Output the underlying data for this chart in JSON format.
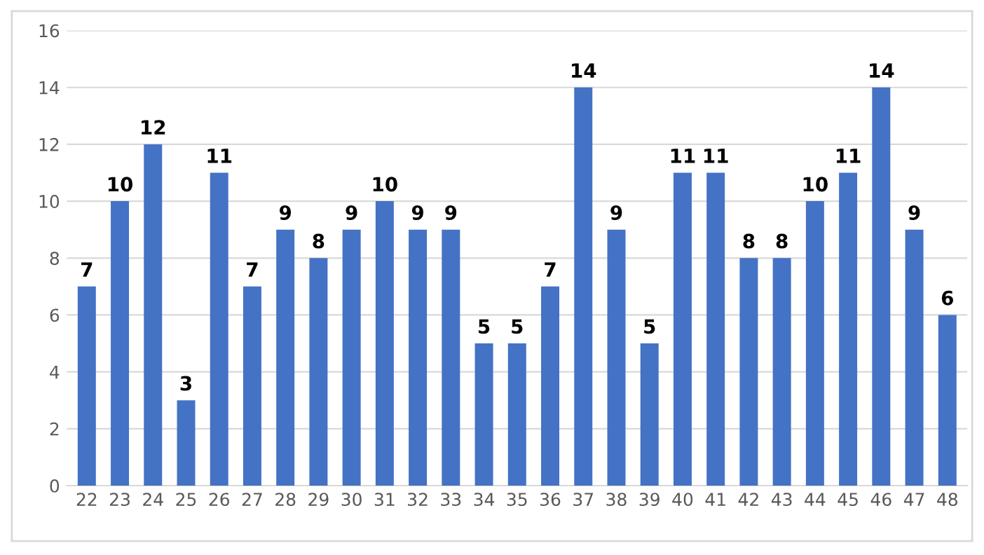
{
  "chart_data": {
    "type": "bar",
    "categories": [
      "22",
      "23",
      "24",
      "25",
      "26",
      "27",
      "28",
      "29",
      "30",
      "31",
      "32",
      "33",
      "34",
      "35",
      "36",
      "37",
      "38",
      "39",
      "40",
      "41",
      "42",
      "43",
      "44",
      "45",
      "46",
      "47",
      "48"
    ],
    "values": [
      7,
      10,
      12,
      3,
      11,
      7,
      9,
      8,
      9,
      10,
      9,
      9,
      5,
      5,
      7,
      14,
      9,
      5,
      11,
      11,
      8,
      8,
      10,
      11,
      14,
      9,
      6
    ],
    "color": "#4472c4",
    "ylim": [
      0,
      16
    ],
    "yticks": [
      0,
      2,
      4,
      6,
      8,
      10,
      12,
      14,
      16
    ],
    "grid": "y",
    "data_labels": true
  }
}
